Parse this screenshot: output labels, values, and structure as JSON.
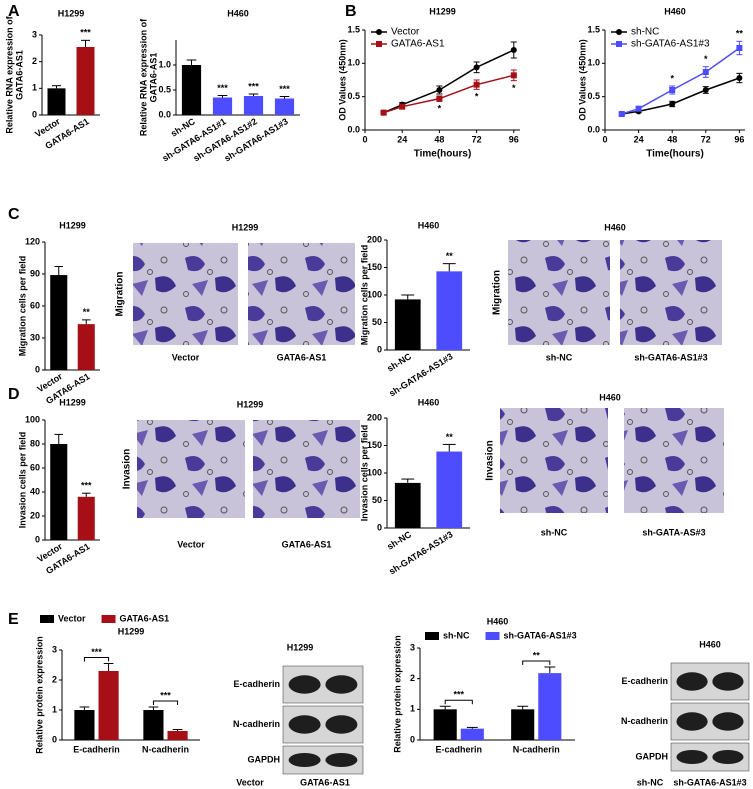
{
  "panel_labels": [
    "A",
    "B",
    "C",
    "D",
    "E"
  ],
  "chart_data": [
    {
      "type": "bar",
      "title": "H1299",
      "ylabel": [
        "Relative RNA expression of",
        "GATA6-AS1"
      ],
      "categories": [
        "Vector",
        "GATA6-AS1"
      ],
      "values": [
        1.0,
        2.55
      ],
      "errors": [
        0.1,
        0.25
      ],
      "colors": [
        "#000000",
        "#a50f15"
      ],
      "significance": [
        null,
        "***"
      ],
      "ylim": [
        0,
        3
      ],
      "yticks": [
        0,
        1,
        2,
        3
      ]
    },
    {
      "type": "bar",
      "title": "H460",
      "ylabel": [
        "Relative RNA expression of",
        "GATA6-AS1"
      ],
      "categories": [
        "sh-NC",
        "sh-GATA6-AS1#1",
        "sh-GATA6-AS1#2",
        "sh-GATA6-AS1#3"
      ],
      "values": [
        1.0,
        0.35,
        0.38,
        0.33
      ],
      "errors": [
        0.1,
        0.04,
        0.04,
        0.04
      ],
      "colors": [
        "#000000",
        "#4d4dff",
        "#4d4dff",
        "#4d4dff"
      ],
      "significance": [
        null,
        "***",
        "***",
        "***"
      ],
      "ylim": [
        0,
        1.5
      ],
      "yticks": [
        {
          "value": 0,
          "label": "0.0"
        },
        {
          "value": 0.5,
          "label": "0.5"
        },
        {
          "value": 1,
          "label": "1.0"
        }
      ]
    },
    {
      "type": "line",
      "title": "H1299",
      "xlabel": "Time(hours)",
      "ylabel": [
        "OD Values (450nm)"
      ],
      "x": [
        12,
        24,
        48,
        72,
        96
      ],
      "xlim": [
        0,
        100
      ],
      "xticks": [
        0,
        24,
        48,
        72,
        96
      ],
      "ylim": [
        0,
        1.5
      ],
      "yticks": [
        {
          "value": 0,
          "label": "0.0"
        },
        {
          "value": 0.5,
          "label": "0.5"
        },
        {
          "value": 1,
          "label": "1.0"
        },
        {
          "value": 1.5,
          "label": "1.5"
        }
      ],
      "series": [
        {
          "name": "Vector",
          "color": "#000000",
          "marker": "circle",
          "values": [
            0.26,
            0.38,
            0.6,
            0.94,
            1.2
          ],
          "errors": [
            0.02,
            0.03,
            0.06,
            0.08,
            0.12
          ]
        },
        {
          "name": "GATA6-AS1",
          "color": "#a50f15",
          "marker": "square",
          "values": [
            0.26,
            0.35,
            0.47,
            0.68,
            0.82
          ],
          "errors": [
            0.02,
            0.03,
            0.04,
            0.07,
            0.08
          ],
          "significance": [
            null,
            null,
            "*",
            "*",
            "*"
          ]
        }
      ]
    },
    {
      "type": "line",
      "title": "H460",
      "xlabel": "Time(hours)",
      "ylabel": [
        "OD Values (450nm)"
      ],
      "x": [
        12,
        24,
        48,
        72,
        96
      ],
      "xlim": [
        0,
        100
      ],
      "xticks": [
        0,
        24,
        48,
        72,
        96
      ],
      "ylim": [
        0,
        1.5
      ],
      "yticks": [
        {
          "value": 0,
          "label": "0.0"
        },
        {
          "value": 0.5,
          "label": "0.5"
        },
        {
          "value": 1,
          "label": "1.0"
        },
        {
          "value": 1.5,
          "label": "1.5"
        }
      ],
      "series": [
        {
          "name": "sh-NC",
          "color": "#000000",
          "marker": "circle",
          "values": [
            0.24,
            0.28,
            0.39,
            0.6,
            0.78
          ],
          "errors": [
            0.02,
            0.02,
            0.04,
            0.05,
            0.07
          ]
        },
        {
          "name": "sh-GATA6-AS1#3",
          "color": "#4d4dff",
          "marker": "square",
          "values": [
            0.24,
            0.32,
            0.6,
            0.87,
            1.23
          ],
          "errors": [
            0.02,
            0.03,
            0.06,
            0.08,
            0.1
          ],
          "significance": [
            null,
            null,
            "*",
            "*",
            "**"
          ]
        }
      ]
    },
    {
      "type": "bar",
      "title": "H1299",
      "ylabel": [
        "Migration cells per field"
      ],
      "categories": [
        "Vector",
        "GATA6-AS1"
      ],
      "values": [
        89,
        43
      ],
      "errors": [
        8,
        4
      ],
      "colors": [
        "#000000",
        "#a50f15"
      ],
      "significance": [
        null,
        "**"
      ],
      "ylim": [
        0,
        120
      ],
      "yticks": [
        0,
        30,
        60,
        90,
        120
      ]
    },
    {
      "type": "bar",
      "title": "H460",
      "ylabel": [
        "Migration cells per field"
      ],
      "categories": [
        "sh-NC",
        "sh-GATA6-AS1#3"
      ],
      "values": [
        92,
        143
      ],
      "errors": [
        8,
        14
      ],
      "colors": [
        "#000000",
        "#4d4dff"
      ],
      "significance": [
        null,
        "**"
      ],
      "ylim": [
        0,
        200
      ],
      "yticks": [
        0,
        50,
        100,
        150,
        200
      ]
    },
    {
      "type": "bar",
      "title": "H1299",
      "ylabel": [
        "Invasion cells per field"
      ],
      "categories": [
        "Vector",
        "GATA6-AS1"
      ],
      "values": [
        80,
        36
      ],
      "errors": [
        8,
        3
      ],
      "colors": [
        "#000000",
        "#a50f15"
      ],
      "significance": [
        null,
        "***"
      ],
      "ylim": [
        0,
        100
      ],
      "yticks": [
        0,
        20,
        40,
        60,
        80,
        100
      ]
    },
    {
      "type": "bar",
      "title": "H460",
      "ylabel": [
        "Invasion cells per field"
      ],
      "categories": [
        "sh-NC",
        "sh-GATA6-AS1#3"
      ],
      "values": [
        82,
        139
      ],
      "errors": [
        7,
        13
      ],
      "colors": [
        "#000000",
        "#4d4dff"
      ],
      "significance": [
        null,
        "**"
      ],
      "ylim": [
        0,
        200
      ],
      "yticks": [
        0,
        50,
        100,
        150,
        200
      ]
    },
    {
      "type": "bar",
      "title": "H1299",
      "ylabel": [
        "Relative protein expression"
      ],
      "categories": [
        "E-cadherin",
        "N-cadherin"
      ],
      "significance": [
        "***",
        "***"
      ],
      "ylim": [
        0,
        3
      ],
      "yticks": [
        0,
        1,
        2,
        3
      ],
      "series": [
        {
          "name": "Vector",
          "color": "#000000",
          "values": [
            1.0,
            1.0
          ],
          "errors": [
            0.1,
            0.1
          ]
        },
        {
          "name": "GATA6-AS1",
          "color": "#a50f15",
          "values": [
            2.3,
            0.3
          ],
          "errors": [
            0.25,
            0.05
          ]
        }
      ]
    },
    {
      "type": "bar",
      "title": "H460",
      "ylabel": [
        "Relative protein expression"
      ],
      "categories": [
        "E-cadherin",
        "N-cadherin"
      ],
      "significance": [
        "***",
        "**"
      ],
      "ylim": [
        0,
        3
      ],
      "yticks": [
        0,
        1,
        2,
        3
      ],
      "series": [
        {
          "name": "sh-NC",
          "color": "#000000",
          "values": [
            1.0,
            1.0
          ],
          "errors": [
            0.1,
            0.1
          ]
        },
        {
          "name": "sh-GATA6-AS1#3",
          "color": "#4d4dff",
          "values": [
            0.37,
            2.18
          ],
          "errors": [
            0.04,
            0.2
          ]
        }
      ]
    }
  ],
  "images": [
    {
      "title": "H1299",
      "side_label": "Migration",
      "captions": [
        "Vector",
        "GATA6-AS1"
      ]
    },
    {
      "title": "H460",
      "side_label": "Migration",
      "captions": [
        "sh-NC",
        "sh-GATA6-AS1#3"
      ]
    },
    {
      "title": "H1299",
      "side_label": "Invasion",
      "captions": [
        "Vector",
        "GATA6-AS1"
      ]
    },
    {
      "title": "H460",
      "side_label": "Invasion",
      "captions": [
        "sh-NC",
        "sh-GATA-AS#3"
      ]
    },
    {
      "title": "H1299",
      "rows": [
        "E-cadherin",
        "N-cadherin",
        "GAPDH"
      ],
      "captions": [
        "Vector",
        "GATA6-AS1"
      ]
    },
    {
      "title": "H460",
      "rows": [
        "E-cadherin",
        "N-cadherin",
        "GAPDH"
      ],
      "captions": [
        "sh-NC",
        "sh-GATA6-AS1#3"
      ]
    }
  ]
}
